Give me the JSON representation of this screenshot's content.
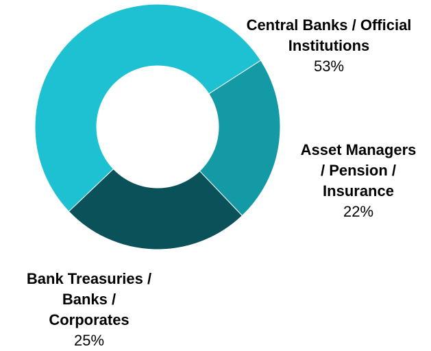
{
  "chart_data": {
    "type": "pie",
    "donut": true,
    "title": "",
    "slices": [
      {
        "label": "Central Banks / Official Institutions",
        "label_lines": [
          "Central Banks / Official",
          "Institutions"
        ],
        "percent_label": "53%",
        "value": 53,
        "color": "#1EC1D2"
      },
      {
        "label": "Asset Managers / Pension / Insurance",
        "label_lines": [
          "Asset Managers",
          "/ Pension /",
          "Insurance"
        ],
        "percent_label": "22%",
        "value": 22,
        "color": "#149AA5"
      },
      {
        "label": "Bank Treasuries / Banks / Corporates",
        "label_lines": [
          "Bank Treasuries /",
          "Banks /",
          "Corporates"
        ],
        "percent_label": "25%",
        "value": 25,
        "color": "#0B5159"
      }
    ]
  }
}
